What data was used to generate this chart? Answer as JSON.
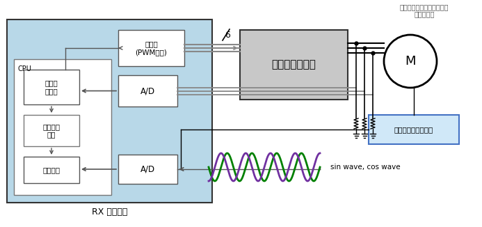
{
  "bg_color": "#ffffff",
  "rx_bg_color": "#b8d8e8",
  "title_top_line1": "磁気エンコーダ検出用磁石",
  "title_top_line2": "付きモータ",
  "rx_label": "RX マイコン",
  "timer_label": "タイマ\n(PWM出力)",
  "inverter_label": "インバータ回路",
  "motor_label": "M",
  "encoder_board_label": "磁気エンコーダ基板",
  "cpu_label": "CPU",
  "motor_ctrl_label": "モータ\n制御部",
  "pos_calc_label": "位置情報\n算出",
  "error_corr_label": "誤差補正",
  "ad1_label": "A/D",
  "ad2_label": "A/D",
  "six_label": "6",
  "sin_cos_label": "sin wave, cos wave",
  "sin_color": "#008000",
  "cos_color": "#7030a0"
}
